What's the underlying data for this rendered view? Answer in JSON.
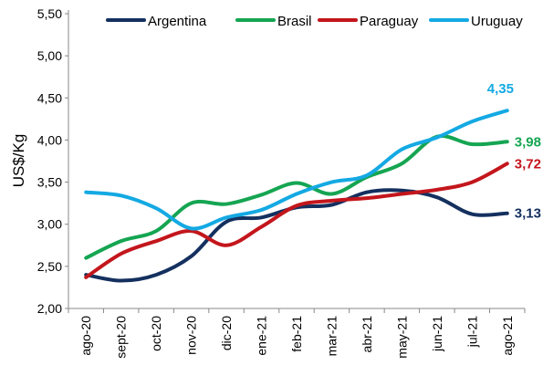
{
  "chart_data": {
    "type": "line",
    "title": "",
    "xlabel": "",
    "ylabel": "US$/Kg",
    "ylim": [
      2.0,
      5.5
    ],
    "yticks": [
      "2,00",
      "2,50",
      "3,00",
      "3,50",
      "4,00",
      "4,50",
      "5,00",
      "5,50"
    ],
    "ytick_values": [
      2.0,
      2.5,
      3.0,
      3.5,
      4.0,
      4.5,
      5.0,
      5.5
    ],
    "categories": [
      "ago-20",
      "sept-20",
      "oct-20",
      "nov-20",
      "dic-20",
      "ene-21",
      "feb-21",
      "mar-21",
      "abr-21",
      "may-21",
      "jun-21",
      "jul-21",
      "ago-21"
    ],
    "grid": false,
    "legend_position": "top",
    "series": [
      {
        "name": "Argentina",
        "color": "#14305f",
        "values": [
          2.4,
          2.33,
          2.4,
          2.62,
          3.03,
          3.08,
          3.2,
          3.23,
          3.38,
          3.4,
          3.32,
          3.12,
          3.13
        ],
        "end_label": "3,13"
      },
      {
        "name": "Brasil",
        "color": "#15a552",
        "values": [
          2.6,
          2.8,
          2.92,
          3.25,
          3.24,
          3.35,
          3.49,
          3.36,
          3.56,
          3.72,
          4.04,
          3.95,
          3.98
        ],
        "end_label": "3,98"
      },
      {
        "name": "Paraguay",
        "color": "#c3161c",
        "values": [
          2.37,
          2.65,
          2.8,
          2.92,
          2.75,
          2.97,
          3.22,
          3.28,
          3.31,
          3.36,
          3.41,
          3.5,
          3.72
        ],
        "end_label": "3,72"
      },
      {
        "name": "Uruguay",
        "color": "#14a9e3",
        "values": [
          3.38,
          3.34,
          3.19,
          2.95,
          3.08,
          3.17,
          3.36,
          3.5,
          3.58,
          3.89,
          4.03,
          4.22,
          4.35
        ],
        "end_label": "4,35"
      }
    ]
  }
}
